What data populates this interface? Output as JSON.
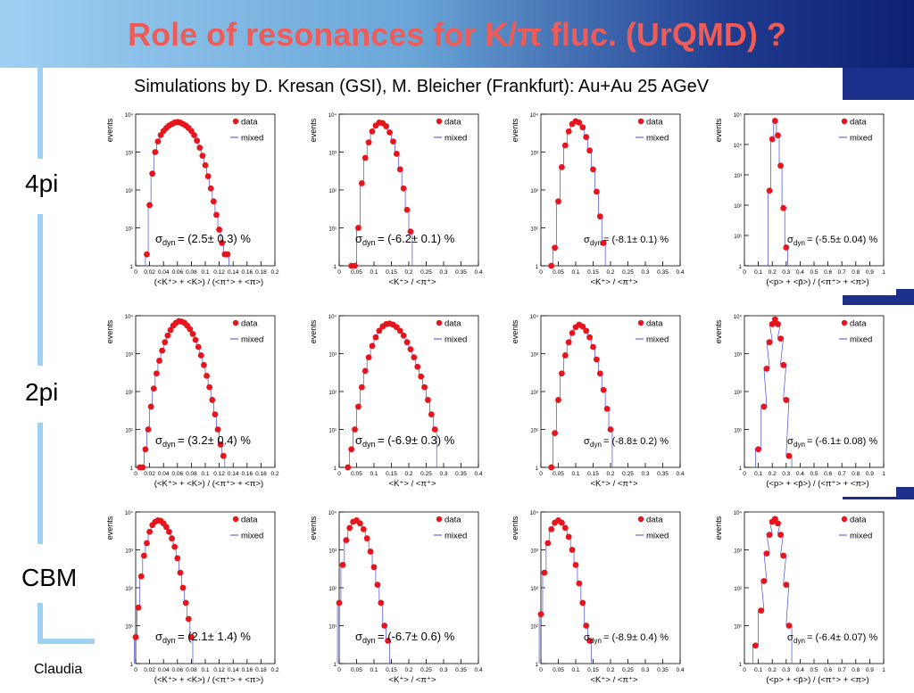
{
  "title": "Role of resonances for K/π fluc. (UrQMD) ?",
  "subtitle": "Simulations by D. Kresan (GSI), M. Bleicher (Frankfurt): Au+Au 25 AGeV",
  "footer": "Claudia",
  "rows": [
    "4pi",
    "2pi",
    "CBM"
  ],
  "colors": {
    "data": "#e8141c",
    "mixed": "#4a4ad8",
    "title": "#ef5b56"
  },
  "chart_data": [
    {
      "type": "scatter",
      "row": "4pi",
      "col": 1,
      "ylabel": "events",
      "xlabel": "(<K⁺> + <K>) / (<π⁺> + <π>)",
      "xticks": [
        "0",
        "0.02",
        "0.04",
        "0.06",
        "0.08",
        "0.1",
        "0.12",
        "0.14",
        "0.16",
        "0.18",
        "0.2"
      ],
      "xlim": [
        0,
        0.2
      ],
      "ylim": [
        1,
        10000
      ],
      "log_y": true,
      "legend": [
        "data",
        "mixed"
      ],
      "sigma_label": "= (2.5± 0.3) %",
      "series": [
        {
          "name": "data",
          "x": [
            0.016,
            0.02,
            0.024,
            0.028,
            0.032,
            0.036,
            0.04,
            0.044,
            0.048,
            0.052,
            0.056,
            0.06,
            0.064,
            0.068,
            0.072,
            0.076,
            0.08,
            0.084,
            0.088,
            0.092,
            0.096,
            0.1,
            0.104,
            0.108,
            0.112,
            0.116,
            0.12,
            0.124,
            0.128,
            0.132
          ],
          "y": [
            2,
            40,
            270,
            1000,
            1900,
            2800,
            3600,
            4300,
            5000,
            5500,
            6000,
            6200,
            6000,
            5500,
            5000,
            4300,
            3600,
            2800,
            2000,
            1300,
            800,
            450,
            230,
            110,
            50,
            22,
            9,
            4,
            2,
            2
          ]
        }
      ]
    },
    {
      "type": "scatter",
      "row": "4pi",
      "col": 2,
      "ylabel": "events",
      "xlabel": "<K⁺> / <π⁺>",
      "xticks": [
        "0",
        "0.05",
        "0.1",
        "0.15",
        "0.2",
        "0.25",
        "0.3",
        "0.35",
        "0.4"
      ],
      "xlim": [
        0,
        0.4
      ],
      "ylim": [
        1,
        10000
      ],
      "log_y": true,
      "legend": [
        "data",
        "mixed"
      ],
      "sigma_label": "= (-6.2± 0.1) %",
      "series": [
        {
          "name": "data",
          "x": [
            0.035,
            0.045,
            0.055,
            0.065,
            0.075,
            0.085,
            0.095,
            0.105,
            0.115,
            0.125,
            0.135,
            0.145,
            0.155,
            0.165,
            0.175,
            0.185,
            0.195,
            0.205
          ],
          "y": [
            1,
            1,
            10,
            150,
            700,
            1800,
            3500,
            5000,
            6000,
            5800,
            4800,
            3300,
            1900,
            900,
            350,
            110,
            30,
            8
          ]
        }
      ]
    },
    {
      "type": "scatter",
      "row": "4pi",
      "col": 3,
      "ylabel": "events",
      "xlabel": "<K⁺> / <π⁺>",
      "xticks": [
        "0",
        "0.05",
        "0.1",
        "0.15",
        "0.2",
        "0.25",
        "0.3",
        "0.35",
        "0.4"
      ],
      "xlim": [
        0,
        0.4
      ],
      "ylim": [
        1,
        10000
      ],
      "log_y": true,
      "legend": [
        "data",
        "mixed"
      ],
      "sigma_label": "= (-8.1± 0.1) %",
      "series": [
        {
          "name": "data",
          "x": [
            0.03,
            0.04,
            0.05,
            0.06,
            0.07,
            0.08,
            0.09,
            0.1,
            0.11,
            0.12,
            0.13,
            0.14,
            0.15,
            0.16,
            0.17,
            0.18
          ],
          "y": [
            1,
            3,
            50,
            400,
            1500,
            3500,
            5500,
            6500,
            6000,
            4500,
            2500,
            1100,
            350,
            90,
            20,
            4
          ]
        }
      ]
    },
    {
      "type": "scatter",
      "row": "4pi",
      "col": 4,
      "ylabel": "events",
      "xlabel": "(<p> + <p̄>) / (<π⁺> + <π>)",
      "xticks": [
        "0",
        "0.1",
        "0.2",
        "0.3",
        "0.4",
        "0.5",
        "0.6",
        "0.7",
        "0.8",
        "0.9",
        "1"
      ],
      "xlim": [
        0,
        1
      ],
      "ylim": [
        1,
        100000
      ],
      "log_y": true,
      "legend": [
        "data",
        "mixed"
      ],
      "sigma_label": "= (-5.5± 0.04) %",
      "series": [
        {
          "name": "data",
          "x": [
            0.18,
            0.2,
            0.22,
            0.24,
            0.26,
            0.28,
            0.3
          ],
          "y": [
            300,
            15000,
            60000,
            20000,
            2000,
            80,
            4
          ]
        }
      ]
    },
    {
      "type": "scatter",
      "row": "2pi",
      "col": 1,
      "ylabel": "events",
      "xlabel": "(<K⁺> + <K>) / (<π⁺> + <π>)",
      "xticks": [
        "0",
        "0.02",
        "0.04",
        "0.06",
        "0.08",
        "0.1",
        "0.12",
        "0.14",
        "0.16",
        "0.18",
        "0.2"
      ],
      "xlim": [
        0,
        0.2
      ],
      "ylim": [
        1,
        10000
      ],
      "log_y": true,
      "legend": [
        "data",
        "mixed"
      ],
      "sigma_label": "= (3.2± 0.4) %",
      "series": [
        {
          "name": "data",
          "x": [
            0.006,
            0.01,
            0.014,
            0.018,
            0.022,
            0.026,
            0.03,
            0.034,
            0.038,
            0.042,
            0.046,
            0.05,
            0.054,
            0.058,
            0.062,
            0.066,
            0.07,
            0.074,
            0.078,
            0.082,
            0.086,
            0.09,
            0.094,
            0.098,
            0.102,
            0.106,
            0.11,
            0.114,
            0.118,
            0.122,
            0.126
          ],
          "y": [
            1,
            1,
            3,
            10,
            40,
            120,
            300,
            650,
            1200,
            2000,
            3000,
            4200,
            5500,
            6500,
            7200,
            7000,
            6500,
            5500,
            4400,
            3300,
            2300,
            1500,
            900,
            500,
            260,
            130,
            60,
            25,
            10,
            4,
            2
          ]
        }
      ]
    },
    {
      "type": "scatter",
      "row": "2pi",
      "col": 2,
      "ylabel": "events",
      "xlabel": "<K⁺> / <π⁺>",
      "xticks": [
        "0",
        "0.05",
        "0.1",
        "0.15",
        "0.2",
        "0.25",
        "0.3",
        "0.35",
        "0.4"
      ],
      "xlim": [
        0,
        0.4
      ],
      "ylim": [
        1,
        10000
      ],
      "log_y": true,
      "legend": [
        "data",
        "mixed"
      ],
      "sigma_label": "= (-6.9± 0.3) %",
      "series": [
        {
          "name": "data",
          "x": [
            0.025,
            0.035,
            0.045,
            0.055,
            0.065,
            0.075,
            0.085,
            0.095,
            0.105,
            0.115,
            0.125,
            0.135,
            0.145,
            0.155,
            0.165,
            0.175,
            0.185,
            0.195,
            0.205,
            0.215,
            0.225,
            0.235,
            0.245,
            0.255,
            0.265,
            0.275
          ],
          "y": [
            1,
            3,
            10,
            40,
            130,
            350,
            800,
            1600,
            2700,
            4000,
            5200,
            6000,
            6200,
            5800,
            5000,
            4000,
            3000,
            2000,
            1300,
            800,
            450,
            250,
            130,
            60,
            25,
            10
          ]
        }
      ]
    },
    {
      "type": "scatter",
      "row": "2pi",
      "col": 3,
      "ylabel": "events",
      "xlabel": "<K⁺> / <π⁺>",
      "xticks": [
        "0",
        "0.05",
        "0.1",
        "0.15",
        "0.2",
        "0.25",
        "0.3",
        "0.35",
        "0.4"
      ],
      "xlim": [
        0,
        0.4
      ],
      "ylim": [
        1,
        10000
      ],
      "log_y": true,
      "legend": [
        "data",
        "mixed"
      ],
      "sigma_label": "= (-8.8± 0.2) %",
      "series": [
        {
          "name": "data",
          "x": [
            0.03,
            0.04,
            0.05,
            0.06,
            0.07,
            0.08,
            0.09,
            0.1,
            0.11,
            0.12,
            0.13,
            0.14,
            0.15,
            0.16,
            0.17,
            0.18,
            0.19,
            0.2
          ],
          "y": [
            1,
            8,
            60,
            300,
            900,
            2000,
            3500,
            5000,
            5800,
            5200,
            4000,
            2700,
            1500,
            700,
            300,
            110,
            35,
            10
          ]
        }
      ]
    },
    {
      "type": "scatter",
      "row": "2pi",
      "col": 4,
      "ylabel": "events",
      "xlabel": "(<p> + <p̄>) / (<π⁺> + <π>)",
      "xticks": [
        "0",
        "0.1",
        "0.2",
        "0.3",
        "0.4",
        "0.5",
        "0.6",
        "0.7",
        "0.8",
        "0.9",
        "1"
      ],
      "xlim": [
        0,
        1
      ],
      "ylim": [
        1,
        10000
      ],
      "log_y": true,
      "legend": [
        "data",
        "mixed"
      ],
      "sigma_label": "= (-6.1± 0.08) %",
      "series": [
        {
          "name": "data",
          "x": [
            0.1,
            0.14,
            0.16,
            0.18,
            0.2,
            0.22,
            0.24,
            0.26,
            0.28,
            0.3,
            0.32
          ],
          "y": [
            3,
            40,
            400,
            2000,
            6000,
            8000,
            6000,
            2500,
            500,
            60,
            2
          ]
        }
      ]
    },
    {
      "type": "scatter",
      "row": "CBM",
      "col": 1,
      "ylabel": "events",
      "xlabel": "(<K⁺> + <K>) / (<π⁺> + <π>)",
      "xticks": [
        "0",
        "0.02",
        "0.04",
        "0.06",
        "0.08",
        "0.1",
        "0.12",
        "0.14",
        "0.16",
        "0.18",
        "0.2"
      ],
      "xlim": [
        0,
        0.2
      ],
      "ylim": [
        1,
        10000
      ],
      "log_y": true,
      "legend": [
        "data",
        "mixed"
      ],
      "sigma_label": "= (2.1± 1.4) %",
      "series": [
        {
          "name": "data",
          "x": [
            0.0,
            0.004,
            0.008,
            0.012,
            0.016,
            0.02,
            0.024,
            0.028,
            0.032,
            0.036,
            0.04,
            0.044,
            0.048,
            0.052,
            0.056,
            0.06,
            0.064,
            0.068,
            0.072,
            0.076,
            0.08
          ],
          "y": [
            5,
            30,
            200,
            700,
            1500,
            3000,
            4500,
            5500,
            6000,
            5800,
            5000,
            4000,
            3000,
            2000,
            1200,
            600,
            250,
            100,
            40,
            15,
            5
          ]
        }
      ]
    },
    {
      "type": "scatter",
      "row": "CBM",
      "col": 2,
      "ylabel": "events",
      "xlabel": "<K⁺> / <π⁺>",
      "xticks": [
        "0",
        "0.05",
        "0.1",
        "0.15",
        "0.2",
        "0.25",
        "0.3",
        "0.35",
        "0.4"
      ],
      "xlim": [
        0,
        0.4
      ],
      "ylim": [
        1,
        10000
      ],
      "log_y": true,
      "legend": [
        "data",
        "mixed"
      ],
      "sigma_label": "= (-6.7± 0.6) %",
      "series": [
        {
          "name": "data",
          "x": [
            0.0,
            0.01,
            0.02,
            0.03,
            0.04,
            0.05,
            0.06,
            0.07,
            0.08,
            0.09,
            0.1,
            0.11,
            0.12,
            0.13,
            0.14
          ],
          "y": [
            40,
            400,
            1800,
            3800,
            5500,
            6000,
            5000,
            3500,
            2000,
            900,
            350,
            120,
            40,
            10,
            4
          ]
        }
      ]
    },
    {
      "type": "scatter",
      "row": "CBM",
      "col": 3,
      "ylabel": "events",
      "xlabel": "<K⁺> / <π⁺>",
      "xticks": [
        "0",
        "0.05",
        "0.1",
        "0.15",
        "0.2",
        "0.25",
        "0.3",
        "0.35",
        "0.4"
      ],
      "xlim": [
        0,
        0.4
      ],
      "ylim": [
        1,
        10000
      ],
      "log_y": true,
      "legend": [
        "data",
        "mixed"
      ],
      "sigma_label": "= (-8.9± 0.4) %",
      "series": [
        {
          "name": "data",
          "x": [
            0.0,
            0.01,
            0.02,
            0.03,
            0.04,
            0.05,
            0.06,
            0.07,
            0.08,
            0.09,
            0.1,
            0.11,
            0.12,
            0.13,
            0.14
          ],
          "y": [
            20,
            250,
            1500,
            3500,
            5200,
            6000,
            5200,
            3800,
            2200,
            1000,
            400,
            130,
            40,
            10,
            4
          ]
        }
      ]
    },
    {
      "type": "scatter",
      "row": "CBM",
      "col": 4,
      "ylabel": "events",
      "xlabel": "(<p> + <p̄>) / (<π⁺> + <π>)",
      "xticks": [
        "0",
        "0.1",
        "0.2",
        "0.3",
        "0.4",
        "0.5",
        "0.6",
        "0.7",
        "0.8",
        "0.9",
        "1"
      ],
      "xlim": [
        0,
        1
      ],
      "ylim": [
        1,
        10000
      ],
      "log_y": true,
      "legend": [
        "data",
        "mixed"
      ],
      "sigma_label": "= (-6.4± 0.07) %",
      "series": [
        {
          "name": "data",
          "x": [
            0.08,
            0.12,
            0.14,
            0.16,
            0.18,
            0.2,
            0.22,
            0.24,
            0.26,
            0.28,
            0.3,
            0.32
          ],
          "y": [
            3,
            25,
            150,
            800,
            2500,
            5500,
            6500,
            5000,
            2500,
            700,
            120,
            10
          ]
        }
      ]
    }
  ]
}
